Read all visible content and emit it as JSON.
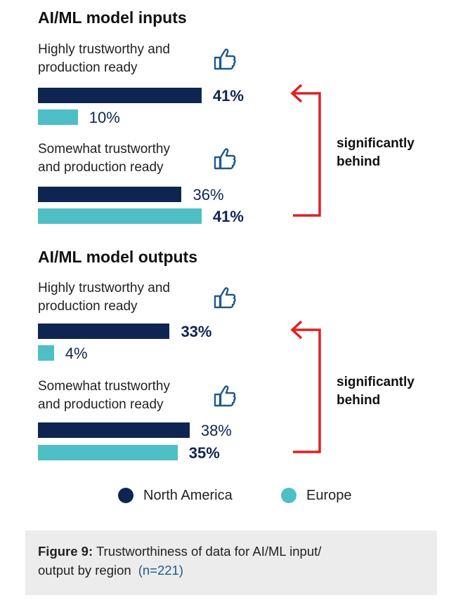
{
  "chart_data": {
    "type": "bar",
    "orientation": "horizontal",
    "series": [
      {
        "name": "North America",
        "color": "#0e2552"
      },
      {
        "name": "Europe",
        "color": "#4dbfc5"
      }
    ],
    "groups": [
      {
        "title": "AI/ML model inputs",
        "categories": [
          {
            "label": "Highly trustworthy and production ready",
            "values": [
              41,
              10
            ],
            "value_labels": [
              "41%",
              "10%"
            ]
          },
          {
            "label": "Somewhat trustworthy and production ready",
            "values": [
              36,
              41
            ],
            "value_labels": [
              "36%",
              "41%"
            ]
          }
        ],
        "annotation": "significantly behind"
      },
      {
        "title": "AI/ML model outputs",
        "categories": [
          {
            "label": "Highly trustworthy and production ready",
            "values": [
              33,
              4
            ],
            "value_labels": [
              "33%",
              "4%"
            ]
          },
          {
            "label": "Somewhat trustworthy and production ready",
            "values": [
              38,
              35
            ],
            "value_labels": [
              "38%",
              "35%"
            ]
          }
        ],
        "annotation": "significantly behind"
      }
    ],
    "legend": {
      "placement": "bottom",
      "items": [
        "North America",
        "Europe"
      ]
    },
    "grid": false
  },
  "labels": {
    "inputs_title": "AI/ML model inputs",
    "outputs_title": "AI/ML model outputs",
    "cat_highly_1": "Highly trustworthy and",
    "cat_highly_2": "production ready",
    "cat_somewhat_1": "Somewhat trustworthy",
    "cat_somewhat_2": "and production ready",
    "bracket_1": "significantly",
    "bracket_2": "behind"
  },
  "legend": {
    "north_america": "North America",
    "europe": "Europe"
  },
  "caption": {
    "figure": "Figure 9:",
    "text_1": "Trustworthiness of data for AI/ML input/",
    "text_2": "output by region",
    "n": "(n=221)"
  },
  "icons": [
    "thumbs-up-icon"
  ],
  "colors": {
    "north_america": "#0e2552",
    "europe": "#4dbfc5",
    "bracket": "#e02020",
    "caption_bg": "#ececec"
  }
}
